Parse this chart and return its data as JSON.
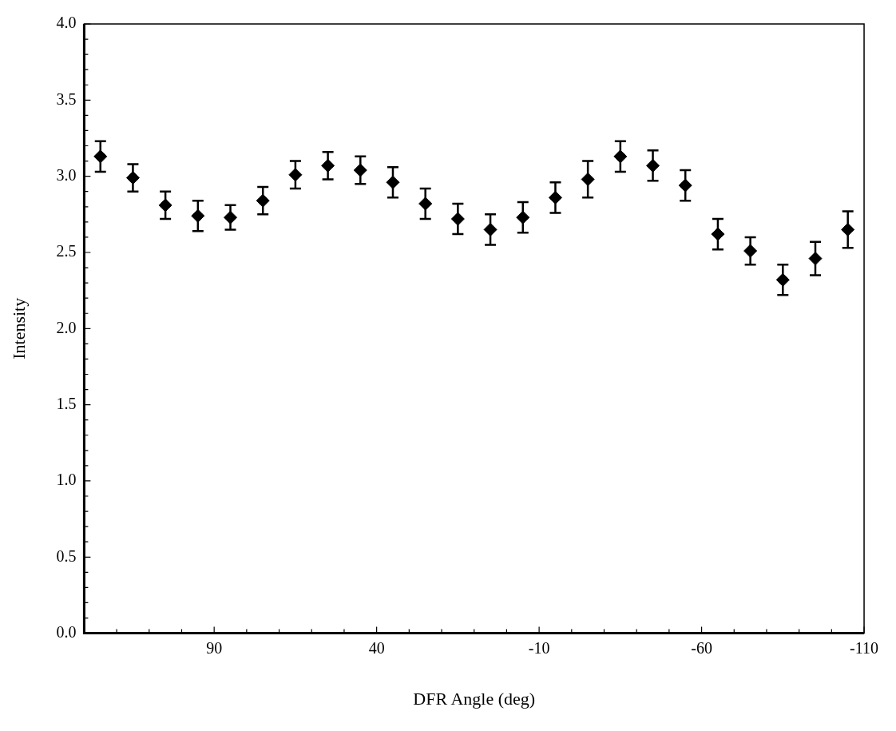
{
  "chart_data": {
    "type": "scatter",
    "xlabel": "DFR Angle (deg)",
    "ylabel": "Intensity",
    "x": [
      125,
      115,
      105,
      95,
      85,
      75,
      65,
      55,
      45,
      35,
      25,
      15,
      5,
      -5,
      -15,
      -25,
      -35,
      -45,
      -55,
      -65,
      -75,
      -85,
      -95,
      -105
    ],
    "series": [
      {
        "color": "#000000",
        "values": [
          3.13,
          2.99,
          2.81,
          2.74,
          2.73,
          2.84,
          3.01,
          3.07,
          3.04,
          2.96,
          2.82,
          2.72,
          2.65,
          2.73,
          2.86,
          2.98,
          3.13,
          3.07,
          2.94,
          2.62,
          2.51,
          2.32,
          2.46,
          2.65
        ],
        "errors": [
          0.1,
          0.09,
          0.09,
          0.1,
          0.08,
          0.09,
          0.09,
          0.09,
          0.09,
          0.1,
          0.1,
          0.1,
          0.1,
          0.1,
          0.1,
          0.12,
          0.1,
          0.1,
          0.1,
          0.1,
          0.09,
          0.1,
          0.11,
          0.12
        ]
      }
    ],
    "xlim": [
      130,
      -110
    ],
    "xticks": [
      {
        "value": 120,
        "label": null
      },
      {
        "value": 110,
        "label": null
      },
      {
        "value": 100,
        "label": null
      },
      90,
      {
        "value": 80,
        "label": null
      },
      {
        "value": 70,
        "label": null
      },
      {
        "value": 60,
        "label": null
      },
      {
        "value": 50,
        "label": null
      },
      40,
      {
        "value": 30,
        "label": null
      },
      {
        "value": 20,
        "label": null
      },
      {
        "value": 10,
        "label": null
      },
      {
        "value": 0,
        "label": null
      },
      -10,
      {
        "value": -20,
        "label": null
      },
      {
        "value": -30,
        "label": null
      },
      {
        "value": -40,
        "label": null
      },
      {
        "value": -50,
        "label": null
      },
      -60,
      {
        "value": -70,
        "label": null
      },
      {
        "value": -80,
        "label": null
      },
      {
        "value": -90,
        "label": null
      },
      {
        "value": -100,
        "label": null
      },
      -110
    ],
    "ylim": [
      0,
      4
    ],
    "yticks": [
      {
        "value": 0,
        "label": "0.0"
      },
      {
        "value": 0.1,
        "label": null
      },
      {
        "value": 0.2,
        "label": null
      },
      {
        "value": 0.3,
        "label": null
      },
      {
        "value": 0.4,
        "label": null
      },
      0.5,
      {
        "value": 0.6,
        "label": null
      },
      {
        "value": 0.7,
        "label": null
      },
      {
        "value": 0.8,
        "label": null
      },
      {
        "value": 0.9,
        "label": null
      },
      {
        "value": 1,
        "label": "1.0"
      },
      {
        "value": 1.1,
        "label": null
      },
      {
        "value": 1.2,
        "label": null
      },
      {
        "value": 1.3,
        "label": null
      },
      {
        "value": 1.4,
        "label": null
      },
      1.5,
      {
        "value": 1.6,
        "label": null
      },
      {
        "value": 1.7,
        "label": null
      },
      {
        "value": 1.8,
        "label": null
      },
      {
        "value": 1.9,
        "label": null
      },
      {
        "value": 2,
        "label": "2.0"
      },
      {
        "value": 2.1,
        "label": null
      },
      {
        "value": 2.2,
        "label": null
      },
      {
        "value": 2.3,
        "label": null
      },
      {
        "value": 2.4,
        "label": null
      },
      2.5,
      {
        "value": 2.6,
        "label": null
      },
      {
        "value": 2.7,
        "label": null
      },
      {
        "value": 2.8,
        "label": null
      },
      {
        "value": 2.9,
        "label": null
      },
      {
        "value": 3,
        "label": "3.0"
      },
      {
        "value": 3.1,
        "label": null
      },
      {
        "value": 3.2,
        "label": null
      },
      {
        "value": 3.3,
        "label": null
      },
      {
        "value": 3.4,
        "label": null
      },
      3.5,
      {
        "value": 3.6,
        "label": null
      },
      {
        "value": 3.7,
        "label": null
      },
      {
        "value": 3.8,
        "label": null
      },
      {
        "value": 3.9,
        "label": null
      },
      {
        "value": 4,
        "label": "4.0"
      }
    ],
    "grid": false,
    "legend": false,
    "marker": "diamond"
  }
}
